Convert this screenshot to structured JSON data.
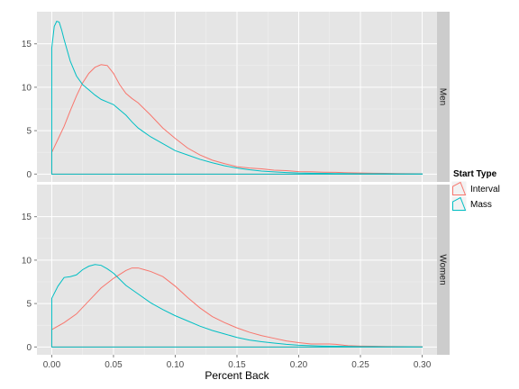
{
  "chart_data": {
    "type": "line",
    "subtype": "density, faceted vertically",
    "xlabel": "Percent Back",
    "ylabel": "",
    "xlim": [
      -0.012,
      0.312
    ],
    "ylim": [
      -0.9,
      18.7
    ],
    "x_ticks": [
      0.0,
      0.05,
      0.1,
      0.15,
      0.2,
      0.25,
      0.3
    ],
    "x_tick_labels": [
      "0.00",
      "0.05",
      "0.10",
      "0.15",
      "0.20",
      "0.25",
      "0.30"
    ],
    "y_ticks": [
      0,
      5,
      10,
      15
    ],
    "y_tick_labels": [
      "0",
      "5",
      "10",
      "15"
    ],
    "grid": true,
    "legend": {
      "title": "Start Type",
      "position": "right",
      "entries": [
        {
          "label": "Interval",
          "color": "#F8766D"
        },
        {
          "label": "Mass",
          "color": "#00BFC4"
        }
      ]
    },
    "panels": [
      {
        "strip": "Men",
        "series": [
          {
            "name": "Interval",
            "color": "#F8766D",
            "x": [
              0.0,
              0.005,
              0.01,
              0.015,
              0.02,
              0.025,
              0.03,
              0.035,
              0.04,
              0.045,
              0.05,
              0.055,
              0.06,
              0.065,
              0.07,
              0.075,
              0.08,
              0.09,
              0.1,
              0.11,
              0.12,
              0.13,
              0.14,
              0.15,
              0.16,
              0.17,
              0.18,
              0.19,
              0.2,
              0.21,
              0.22,
              0.23,
              0.24,
              0.25,
              0.26,
              0.27,
              0.28,
              0.29,
              0.3
            ],
            "y": [
              2.5,
              4.0,
              5.5,
              7.3,
              9.0,
              10.5,
              11.6,
              12.3,
              12.6,
              12.5,
              11.6,
              10.3,
              9.3,
              8.7,
              8.2,
              7.5,
              6.8,
              5.3,
              4.1,
              3.0,
              2.2,
              1.6,
              1.2,
              0.85,
              0.7,
              0.6,
              0.45,
              0.4,
              0.28,
              0.26,
              0.22,
              0.2,
              0.15,
              0.12,
              0.1,
              0.08,
              0.06,
              0.05,
              0.03
            ]
          },
          {
            "name": "Mass",
            "color": "#00BFC4",
            "x": [
              0.0,
              0.002,
              0.004,
              0.006,
              0.008,
              0.01,
              0.015,
              0.02,
              0.025,
              0.03,
              0.035,
              0.04,
              0.045,
              0.05,
              0.055,
              0.06,
              0.065,
              0.07,
              0.075,
              0.08,
              0.09,
              0.1,
              0.11,
              0.12,
              0.13,
              0.14,
              0.15,
              0.16,
              0.17,
              0.18,
              0.19,
              0.2,
              0.21,
              0.22,
              0.23,
              0.24,
              0.25,
              0.26,
              0.27,
              0.28,
              0.29,
              0.3
            ],
            "y": [
              14.5,
              17.0,
              17.6,
              17.5,
              16.6,
              15.5,
              13.0,
              11.3,
              10.3,
              9.7,
              9.1,
              8.6,
              8.3,
              8.0,
              7.4,
              6.8,
              6.0,
              5.3,
              4.8,
              4.3,
              3.5,
              2.7,
              2.2,
              1.7,
              1.3,
              0.95,
              0.7,
              0.5,
              0.35,
              0.25,
              0.18,
              0.12,
              0.1,
              0.08,
              0.06,
              0.05,
              0.04,
              0.03,
              0.03,
              0.02,
              0.02,
              0.02
            ]
          }
        ]
      },
      {
        "strip": "Women",
        "series": [
          {
            "name": "Interval",
            "color": "#F8766D",
            "x": [
              0.0,
              0.01,
              0.02,
              0.03,
              0.04,
              0.05,
              0.06,
              0.065,
              0.07,
              0.075,
              0.08,
              0.09,
              0.1,
              0.11,
              0.12,
              0.13,
              0.14,
              0.15,
              0.16,
              0.17,
              0.18,
              0.19,
              0.2,
              0.21,
              0.22,
              0.225,
              0.23,
              0.24,
              0.25,
              0.26,
              0.27,
              0.28,
              0.29,
              0.3
            ],
            "y": [
              2.0,
              2.8,
              3.8,
              5.3,
              6.8,
              7.9,
              8.8,
              9.1,
              9.1,
              8.9,
              8.7,
              8.1,
              7.0,
              5.7,
              4.5,
              3.5,
              2.8,
              2.2,
              1.7,
              1.3,
              1.0,
              0.7,
              0.5,
              0.35,
              0.35,
              0.35,
              0.3,
              0.15,
              0.1,
              0.08,
              0.06,
              0.05,
              0.04,
              0.03
            ]
          },
          {
            "name": "Mass",
            "color": "#00BFC4",
            "x": [
              0.0,
              0.005,
              0.01,
              0.015,
              0.02,
              0.025,
              0.03,
              0.035,
              0.04,
              0.045,
              0.05,
              0.055,
              0.06,
              0.07,
              0.08,
              0.09,
              0.1,
              0.11,
              0.12,
              0.13,
              0.14,
              0.15,
              0.16,
              0.17,
              0.18,
              0.19,
              0.2,
              0.21,
              0.22,
              0.23,
              0.24,
              0.25,
              0.26,
              0.27,
              0.28,
              0.29,
              0.3
            ],
            "y": [
              5.6,
              7.0,
              8.0,
              8.1,
              8.3,
              8.9,
              9.3,
              9.5,
              9.4,
              9.0,
              8.5,
              7.8,
              7.1,
              6.1,
              5.1,
              4.3,
              3.6,
              3.0,
              2.4,
              1.9,
              1.5,
              1.1,
              0.8,
              0.6,
              0.45,
              0.3,
              0.2,
              0.15,
              0.1,
              0.08,
              0.06,
              0.04,
              0.03,
              0.02,
              0.02,
              0.02,
              0.01
            ]
          }
        ]
      }
    ]
  }
}
